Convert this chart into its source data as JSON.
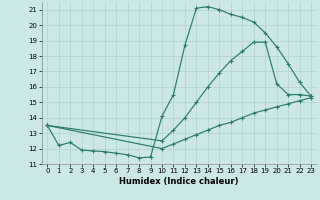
{
  "xlabel": "Humidex (Indice chaleur)",
  "xlim": [
    -0.5,
    23.5
  ],
  "ylim": [
    11,
    21.5
  ],
  "yticks": [
    11,
    12,
    13,
    14,
    15,
    16,
    17,
    18,
    19,
    20,
    21
  ],
  "xticks": [
    0,
    1,
    2,
    3,
    4,
    5,
    6,
    7,
    8,
    9,
    10,
    11,
    12,
    13,
    14,
    15,
    16,
    17,
    18,
    19,
    20,
    21,
    22,
    23
  ],
  "bg_color": "#cce8e6",
  "grid_color": "#b0d0ce",
  "line_color": "#2a7a6e",
  "line1_x": [
    0,
    1,
    2,
    3,
    4,
    5,
    6,
    7,
    8,
    9,
    10,
    11,
    12,
    13,
    14,
    15,
    16,
    17,
    18,
    19,
    20,
    21,
    22,
    23
  ],
  "line1_y": [
    13.5,
    12.2,
    12.4,
    11.9,
    11.85,
    11.8,
    11.7,
    11.6,
    11.4,
    11.45,
    14.1,
    15.5,
    18.7,
    21.1,
    21.2,
    21.0,
    20.7,
    20.5,
    20.2,
    19.5,
    18.6,
    17.5,
    16.3,
    15.4
  ],
  "line2_x": [
    0,
    10,
    11,
    12,
    13,
    14,
    15,
    16,
    17,
    18,
    19,
    20,
    21,
    22,
    23
  ],
  "line2_y": [
    13.5,
    12.5,
    13.2,
    14.0,
    15.0,
    16.0,
    16.9,
    17.7,
    18.3,
    18.9,
    18.9,
    16.2,
    15.5,
    15.5,
    15.4
  ],
  "line3_x": [
    0,
    10,
    11,
    12,
    13,
    14,
    15,
    16,
    17,
    18,
    19,
    20,
    21,
    22,
    23
  ],
  "line3_y": [
    13.5,
    12.0,
    12.3,
    12.6,
    12.9,
    13.2,
    13.5,
    13.7,
    14.0,
    14.3,
    14.5,
    14.7,
    14.9,
    15.1,
    15.3
  ]
}
